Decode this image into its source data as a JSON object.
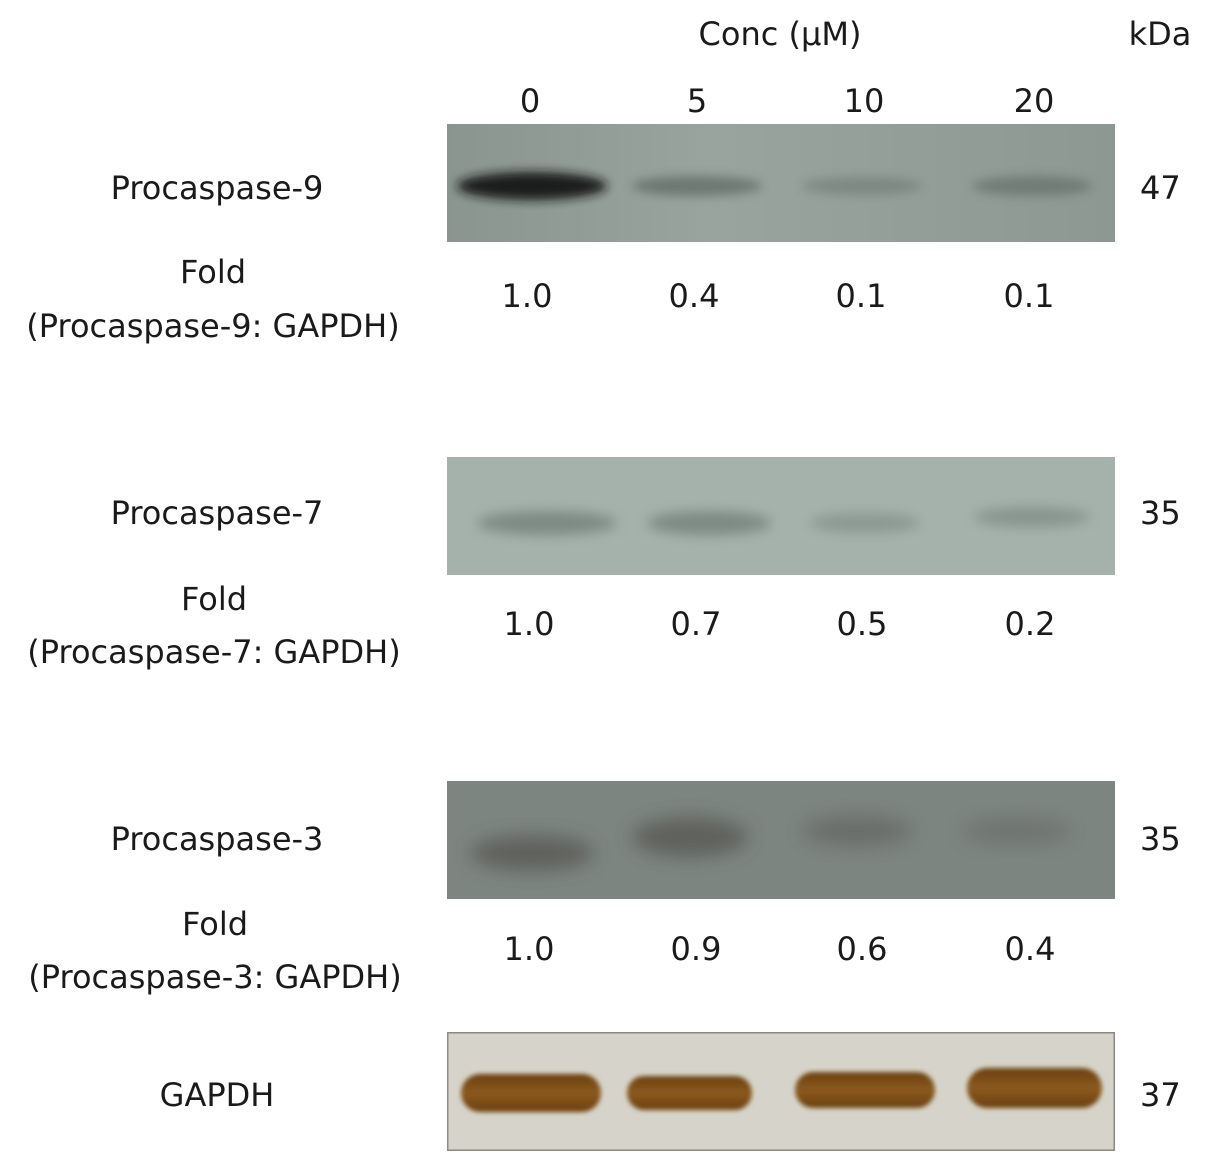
{
  "header": {
    "conc_label": "Conc (μM)",
    "kda_label": "kDa",
    "lanes": [
      "0",
      "5",
      "10",
      "20"
    ]
  },
  "panels": [
    {
      "name": "Procaspase-9",
      "fold_label": "Fold",
      "fold_sublabel": "(Procaspase-9: GAPDH)",
      "kda": "47",
      "fold_values": [
        "1.0",
        "0.4",
        "0.1",
        "0.1"
      ],
      "band_intensity": [
        1.0,
        0.4,
        0.1,
        0.1
      ]
    },
    {
      "name": "Procaspase-7",
      "fold_label": "Fold",
      "fold_sublabel": "(Procaspase-7: GAPDH)",
      "kda": "35",
      "fold_values": [
        "1.0",
        "0.7",
        "0.5",
        "0.2"
      ],
      "band_intensity": [
        1.0,
        0.7,
        0.5,
        0.2
      ]
    },
    {
      "name": "Procaspase-3",
      "fold_label": "Fold",
      "fold_sublabel": "(Procaspase-3: GAPDH)",
      "kda": "35",
      "fold_values": [
        "1.0",
        "0.9",
        "0.6",
        "0.4"
      ],
      "band_intensity": [
        1.0,
        0.9,
        0.6,
        0.4
      ]
    }
  ],
  "loading_control": {
    "name": "GAPDH",
    "kda": "37",
    "band_intensity": [
      1.0,
      1.0,
      1.0,
      1.0
    ]
  },
  "colors": {
    "blot_background_9": "#8f9a95",
    "blot_background_7": "#a3b0aa",
    "blot_background_3": "#7c8480",
    "blot_background_gapdh": "#d4d2c8",
    "gapdh_band": "#7a4a14"
  }
}
